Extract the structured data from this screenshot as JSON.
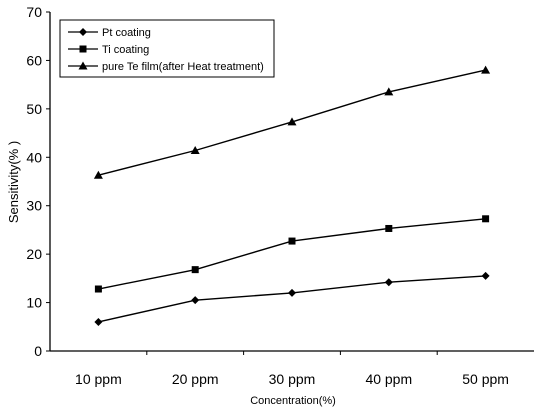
{
  "chart_data": {
    "type": "line",
    "categories": [
      "10 ppm",
      "20 ppm",
      "30 ppm",
      "40 ppm",
      "50 ppm"
    ],
    "series": [
      {
        "name": "Pt coating",
        "marker": "diamond",
        "values": [
          6,
          10.5,
          12,
          14.2,
          15.5
        ]
      },
      {
        "name": "Ti coating",
        "marker": "square",
        "values": [
          12.8,
          16.8,
          22.7,
          25.3,
          27.3
        ]
      },
      {
        "name": "pure Te film(after Heat treatment)",
        "marker": "triangle",
        "values": [
          36.3,
          41.4,
          47.3,
          53.5,
          58
        ]
      }
    ],
    "xlabel": "Concentration(%)",
    "ylabel": "Sensitivity(% )",
    "ylim": [
      0,
      70
    ],
    "yticks": [
      "0",
      "10",
      "20",
      "30",
      "40",
      "50",
      "60",
      "70"
    ],
    "grid": false,
    "legend_position": "top-left"
  }
}
